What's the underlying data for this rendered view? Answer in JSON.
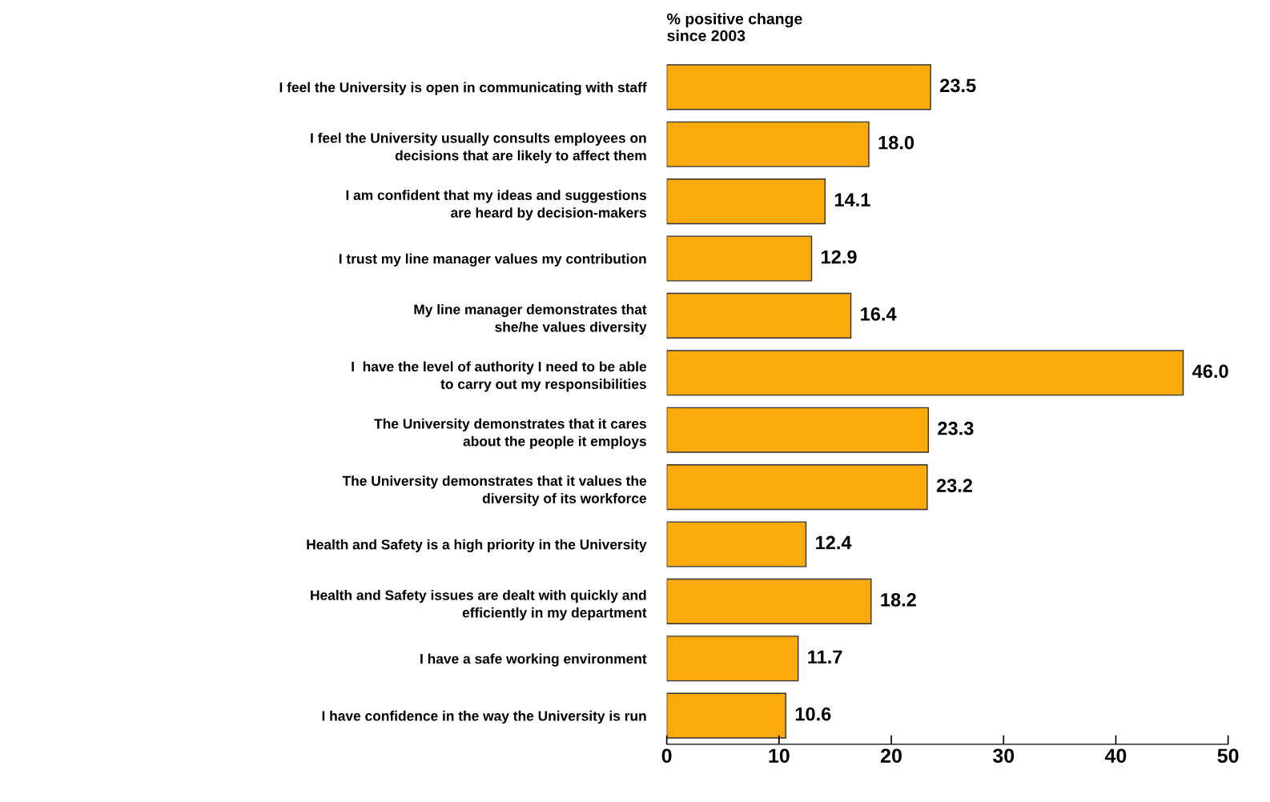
{
  "chart_data": {
    "type": "bar",
    "orientation": "horizontal",
    "title": "% positive change\nsince 2003",
    "categories": [
      "I feel the University is open in communicating with staff",
      "I feel the University usually consults employees on\ndecisions that are likely to affect them",
      "I am confident that my ideas and suggestions\nare heard by decision-makers",
      "I trust my line manager values my contribution",
      "My line manager demonstrates that\nshe/he values diversity",
      "I  have the level of authority I need to be able\nto carry out my responsibilities",
      "The University demonstrates that it cares\nabout the people it employs",
      "The University demonstrates that it values the\ndiversity of its workforce",
      "Health and Safety is a high priority in the University",
      "Health and Safety issues are dealt with quickly and\nefficiently in my department",
      "I have a safe working environment",
      "I have confidence in the way the University is run"
    ],
    "values": [
      23.5,
      18.0,
      14.1,
      12.9,
      16.4,
      46.0,
      23.3,
      23.2,
      12.4,
      18.2,
      11.7,
      10.6
    ],
    "value_labels": [
      "23.5",
      "18.0",
      "14.1",
      "12.9",
      "16.4",
      "46.0",
      "23.3",
      "23.2",
      "12.4",
      "18.2",
      "11.7",
      "10.6"
    ],
    "color": "#fbaa0c",
    "xlim": [
      0,
      50
    ],
    "xticks": [
      0,
      10,
      20,
      30,
      40,
      50
    ],
    "grid": false,
    "legend": false
  }
}
